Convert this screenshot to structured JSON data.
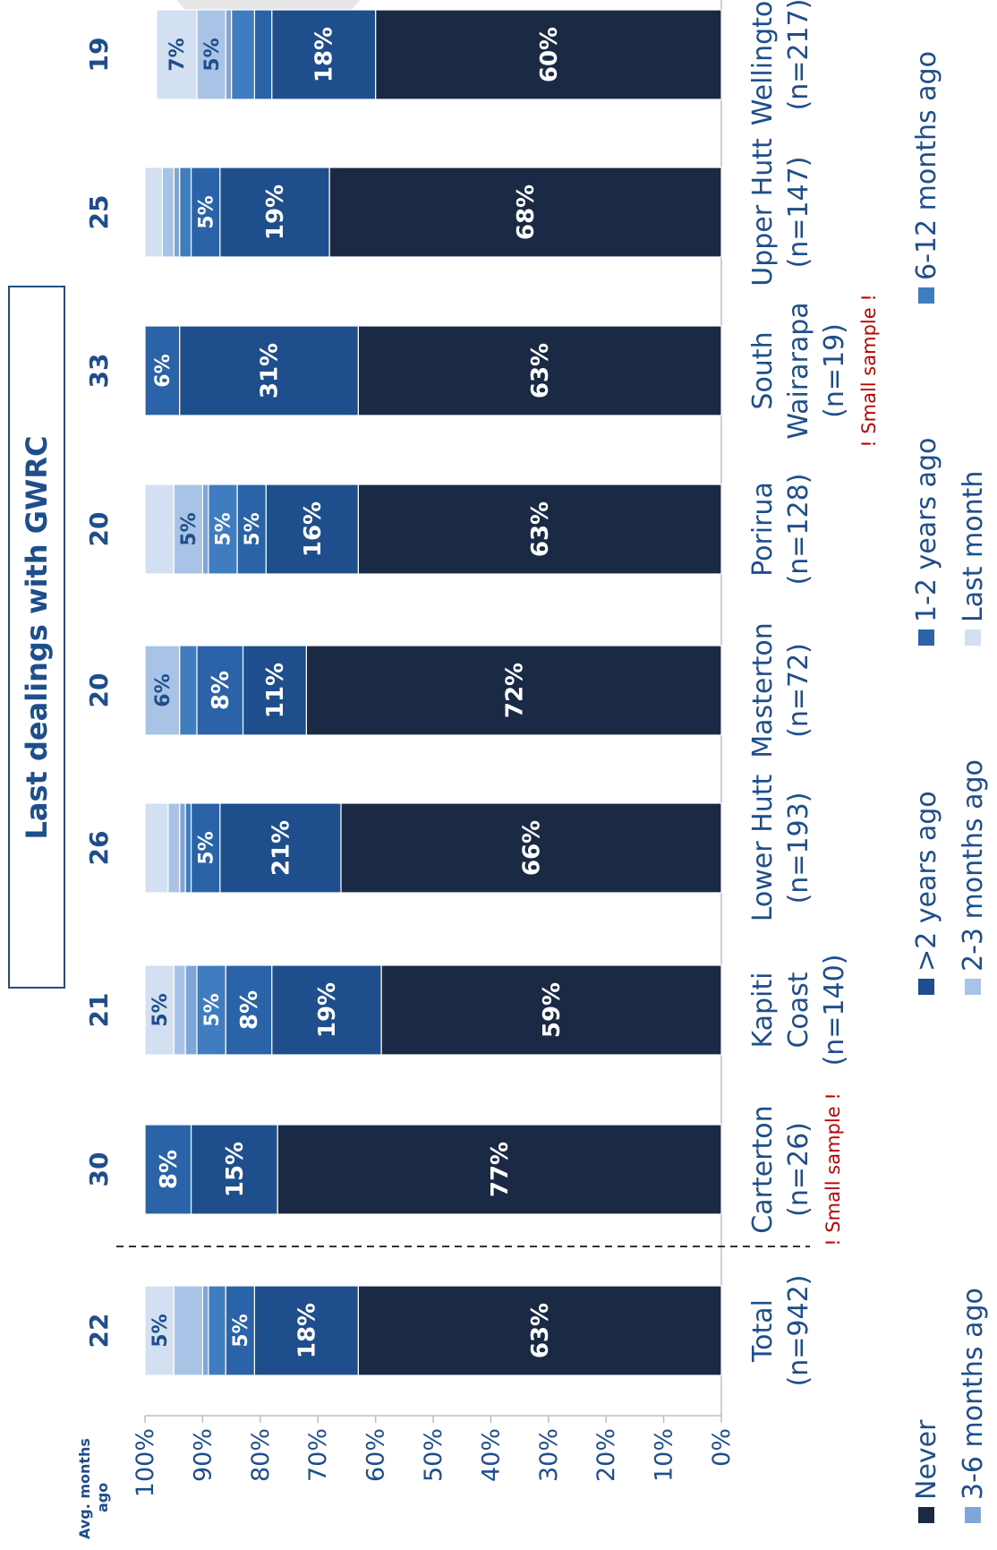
{
  "chart_data": {
    "type": "bar",
    "stacked": true,
    "orientation": "rotated-90",
    "title": "Last dealings with GWRC",
    "ylim": [
      0,
      100
    ],
    "yticks": [
      "100%",
      "90%",
      "80%",
      "70%",
      "60%",
      "50%",
      "40%",
      "30%",
      "20%",
      "10%",
      "0%"
    ],
    "avg_label": "Avg. months ago",
    "categories": [
      {
        "label": "Total",
        "n": "(n=942)",
        "warning": "",
        "avg": "22"
      },
      {
        "label": "Carterton",
        "n": "(n=26)",
        "warning": "! Small sample !",
        "avg": "30"
      },
      {
        "label": "Kapiti Coast",
        "n": "(n=140)",
        "warning": "",
        "avg": "21"
      },
      {
        "label": "Lower Hutt",
        "n": "(n=193)",
        "warning": "",
        "avg": "26"
      },
      {
        "label": "Masterton",
        "n": "(n=72)",
        "warning": "",
        "avg": "20"
      },
      {
        "label": "Porirua",
        "n": "(n=128)",
        "warning": "",
        "avg": "20"
      },
      {
        "label": "South Wairarapa",
        "n": "(n=19)",
        "warning": "! Small sample !",
        "avg": "33"
      },
      {
        "label": "Upper Hutt",
        "n": "(n=147)",
        "warning": "",
        "avg": "25"
      },
      {
        "label": "Wellington",
        "n": "(n=217)",
        "warning": "",
        "avg": "19"
      }
    ],
    "series": [
      {
        "name": "Never",
        "color": "#1b2a44",
        "label_color": "#ffffff",
        "values": [
          63,
          77,
          59,
          66,
          72,
          63,
          63,
          68,
          60
        ]
      },
      {
        "name": ">2 years ago",
        "color": "#1f4e8c",
        "label_color": "#ffffff",
        "values": [
          18,
          15,
          19,
          21,
          11,
          16,
          31,
          19,
          18
        ]
      },
      {
        "name": "1-2 years ago",
        "color": "#2a63a8",
        "label_color": "#ffffff",
        "values": [
          5,
          8,
          8,
          5,
          8,
          5,
          6,
          5,
          3
        ]
      },
      {
        "name": "6-12 months ago",
        "color": "#3f7cc0",
        "label_color": "#ffffff",
        "values": [
          3,
          0,
          5,
          1,
          3,
          5,
          0,
          2,
          4
        ]
      },
      {
        "name": "3-6 months ago",
        "color": "#7fa6d9",
        "label_color": "#ffffff",
        "values": [
          1,
          0,
          2,
          1,
          0,
          1,
          0,
          1,
          1
        ]
      },
      {
        "name": "2-3 months ago",
        "color": "#a9c3e6",
        "label_color": "#1f4e8c",
        "values": [
          5,
          0,
          2,
          2,
          6,
          5,
          0,
          2,
          5
        ]
      },
      {
        "name": "Last month",
        "color": "#d3e0f2",
        "label_color": "#1f4e8c",
        "values": [
          5,
          0,
          5,
          4,
          0,
          5,
          0,
          3,
          7
        ]
      }
    ],
    "bar_labels": [
      [
        "63%",
        "18%",
        "5%",
        "",
        "",
        "",
        "5%"
      ],
      [
        "77%",
        "15%",
        "8%",
        "",
        "",
        "",
        ""
      ],
      [
        "59%",
        "19%",
        "8%",
        "5%",
        "",
        "",
        "5%"
      ],
      [
        "66%",
        "21%",
        "5%",
        "",
        "",
        "",
        ""
      ],
      [
        "72%",
        "11%",
        "8%",
        "",
        "",
        "6%",
        ""
      ],
      [
        "63%",
        "16%",
        "5%",
        "5%",
        "",
        "5%",
        ""
      ],
      [
        "63%",
        "31%",
        "6%",
        "",
        "",
        "",
        ""
      ],
      [
        "68%",
        "19%",
        "5%",
        "",
        "",
        "",
        ""
      ],
      [
        "60%",
        "18%",
        "",
        "",
        "",
        "5%",
        "7%"
      ]
    ],
    "legend_labels": [
      "Never",
      ">2 years ago",
      "1-2 years ago",
      "6-12 months ago",
      "3-6 months ago",
      "2-3 months ago",
      "Last month"
    ],
    "legend_position": "bottom"
  }
}
